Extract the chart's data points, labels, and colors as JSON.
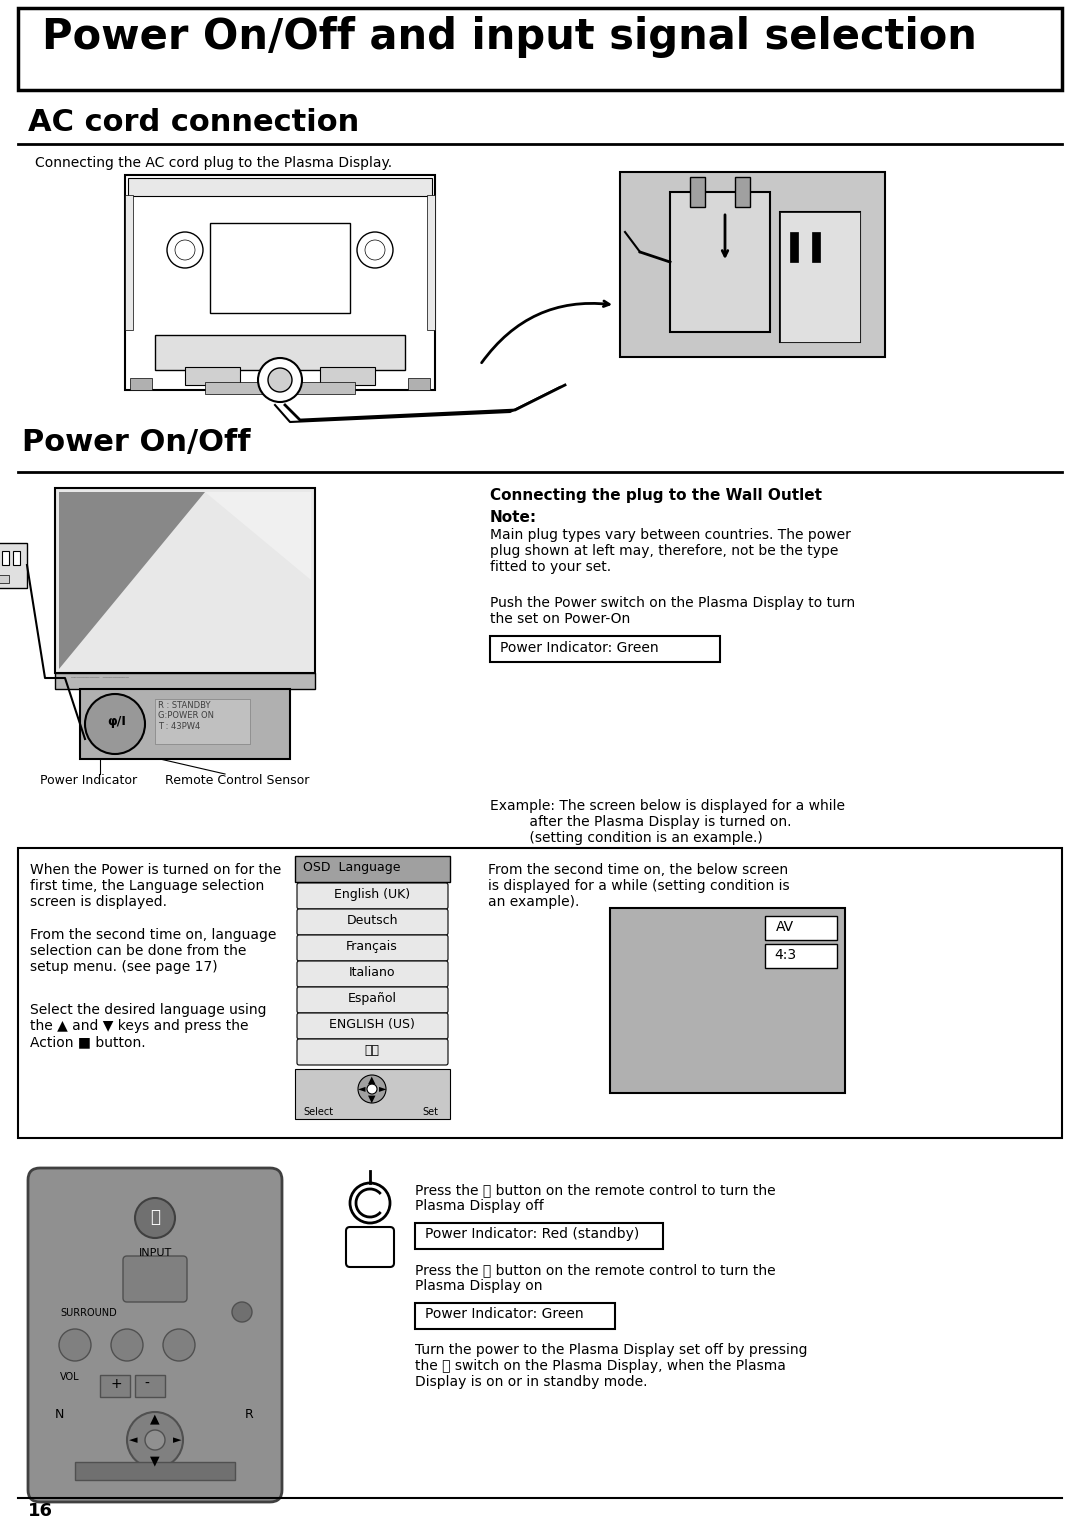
{
  "title": "Power On/Off and input signal selection",
  "section1": "AC cord connection",
  "section2": "Power On/Off",
  "ac_cord_desc": "Connecting the AC cord plug to the Plasma Display.",
  "wall_outlet_title": "Connecting the plug to the Wall Outlet",
  "note_label": "Note:",
  "note_text": "Main plug types vary between countries. The power\nplug shown at left may, therefore, not be the type\nfitted to your set.",
  "push_power_text": "Push the Power switch on the Plasma Display to turn\nthe set on Power-On",
  "indicator_green": "Power Indicator: Green",
  "indicator_red": "Power Indicator: Red (standby)",
  "example_text": "Example: The screen below is displayed for a while\n         after the Plasma Display is turned on.\n         (setting condition is an example.)",
  "second_time_text": "From the second time on, the below screen\nis displayed for a while (setting condition is\nan example).",
  "first_time_text1": "When the Power is turned on for the\nfirst time, the Language selection\nscreen is displayed.",
  "first_time_text2": "From the second time on, language\nselection can be done from the\nsetup menu. (see page 17)",
  "first_time_text3": "Select the desired language using\nthe ▲ and ▼ keys and press the\nAction ■ button.",
  "press_off_text": "Press the ⏽ button on the remote control to turn the\nPlasma Display off",
  "press_on_text": "Press the ⏽ button on the remote control to turn the\nPlasma Display on",
  "turn_power_text": "Turn the power to the Plasma Display set off by pressing\nthe ⏽ switch on the Plasma Display, when the Plasma\nDisplay is on or in standby mode.",
  "power_indicator_label": "Power Indicator",
  "remote_sensor_label": "Remote Control Sensor",
  "page_number": "16",
  "osd_languages": [
    "OSD  Language",
    "English (UK)",
    "Deutsch",
    "Français",
    "Italiano",
    "Español",
    "ENGLISH (US)",
    "中文"
  ],
  "av_labels": [
    "AV",
    "4:3"
  ],
  "bg_color": "#ffffff",
  "gray_light": "#d0d0d0",
  "gray_mid": "#a0a0a0",
  "gray_dark": "#707070",
  "remote_body": "#909090"
}
